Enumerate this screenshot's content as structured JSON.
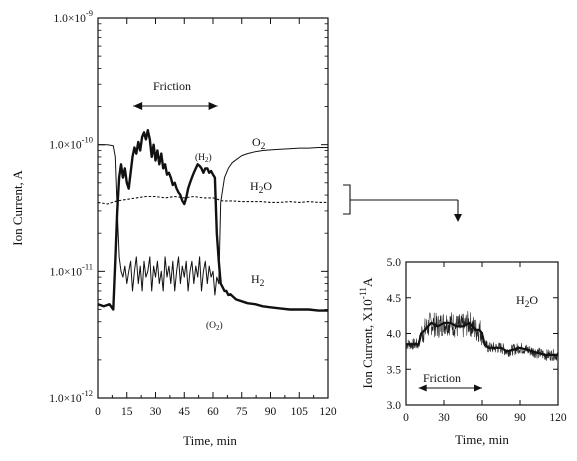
{
  "chart_data": [
    {
      "type": "line",
      "scale": "log",
      "xlabel": "Time, min",
      "ylabel": "Ion Current, A",
      "xlim": [
        0,
        120
      ],
      "ylim": [
        1e-12,
        1e-09
      ],
      "x_ticks": [
        "0",
        "15",
        "30",
        "45",
        "60",
        "75",
        "90",
        "105",
        "120"
      ],
      "y_ticks": [
        {
          "mant": "1.0",
          "exp": "-9",
          "value": 1e-09
        },
        {
          "mant": "1.0",
          "exp": "-10",
          "value": 1e-10
        },
        {
          "mant": "1.0",
          "exp": "-11",
          "value": 1e-11
        },
        {
          "mant": "1.0",
          "exp": "-12",
          "value": 1e-12
        }
      ],
      "annotations": {
        "friction": "Friction",
        "friction_range": [
          10,
          65
        ],
        "o2_label": "O",
        "o2_sub": "2",
        "h2o_label_a": "H",
        "h2o_label_sub": "2",
        "h2o_label_b": "O",
        "h2_label": "H",
        "h2_sub": "2",
        "h2_paren": "(H",
        "h2_paren_sub": "2",
        "h2_paren_close": ")",
        "o2_paren": "(O",
        "o2_paren_sub": "2",
        "o2_paren_close": ")"
      },
      "series": [
        {
          "name": "O2",
          "style": "thin",
          "x": [
            0,
            5,
            8,
            9,
            10,
            11,
            12,
            13,
            14,
            15,
            16,
            17,
            18,
            19,
            20,
            21,
            22,
            23,
            24,
            25,
            26,
            27,
            28,
            29,
            30,
            31,
            32,
            33,
            34,
            35,
            36,
            37,
            38,
            39,
            40,
            41,
            42,
            43,
            44,
            45,
            46,
            47,
            48,
            49,
            50,
            51,
            52,
            53,
            54,
            55,
            56,
            57,
            58,
            59,
            60,
            61,
            62,
            63,
            64,
            66,
            68,
            70,
            72,
            75,
            78,
            82,
            86,
            90,
            95,
            100,
            105,
            110,
            115,
            120
          ],
          "y": [
            1e-10,
            1e-10,
            9.8e-11,
            8e-11,
            3e-11,
            1.3e-11,
            1e-11,
            9e-12,
            1.1e-11,
            8e-12,
            1e-11,
            1.2e-11,
            7e-12,
            1e-11,
            1.3e-11,
            8e-12,
            1.1e-11,
            7e-12,
            1.2e-11,
            9e-12,
            1e-11,
            1.3e-11,
            7e-12,
            1.1e-11,
            9e-12,
            1.2e-11,
            8e-12,
            1e-11,
            7e-12,
            1.3e-11,
            9e-12,
            1.1e-11,
            8e-12,
            1.2e-11,
            7e-12,
            1e-11,
            1.3e-11,
            8e-12,
            1.1e-11,
            9e-12,
            1.2e-11,
            7e-12,
            1e-11,
            1.2e-11,
            8e-12,
            1.1e-11,
            9e-12,
            1.3e-11,
            7e-12,
            1e-11,
            1.2e-11,
            8e-12,
            1.1e-11,
            9e-12,
            1e-11,
            6.5e-12,
            9e-12,
            8e-12,
            3.5e-11,
            5.5e-11,
            6.5e-11,
            7.2e-11,
            7.6e-11,
            8.2e-11,
            8.5e-11,
            8.8e-11,
            9e-11,
            9.1e-11,
            9.2e-11,
            9.3e-11,
            9.4e-11,
            9.4e-11,
            9.5e-11,
            9.5e-11
          ]
        },
        {
          "name": "H2O",
          "style": "dotted",
          "x": [
            0,
            5,
            10,
            15,
            20,
            25,
            30,
            35,
            40,
            45,
            50,
            55,
            60,
            65,
            70,
            75,
            80,
            85,
            90,
            95,
            100,
            105,
            110,
            115,
            120
          ],
          "y": [
            3.5e-11,
            3.4e-11,
            3.6e-11,
            3.7e-11,
            3.8e-11,
            3.9e-11,
            3.9e-11,
            3.8e-11,
            3.9e-11,
            3.8e-11,
            3.9e-11,
            3.8e-11,
            3.8e-11,
            3.6e-11,
            3.6e-11,
            3.55e-11,
            3.55e-11,
            3.55e-11,
            3.5e-11,
            3.5e-11,
            3.55e-11,
            3.5e-11,
            3.55e-11,
            3.5e-11,
            3.5e-11
          ]
        },
        {
          "name": "H2",
          "style": "thick",
          "x": [
            0,
            3,
            6,
            8,
            9,
            10,
            11,
            12,
            13,
            14,
            15,
            16,
            17,
            18,
            19,
            20,
            21,
            22,
            23,
            24,
            25,
            26,
            27,
            28,
            29,
            30,
            31,
            32,
            33,
            34,
            35,
            36,
            37,
            38,
            39,
            40,
            41,
            42,
            43,
            44,
            45,
            46,
            47,
            48,
            49,
            50,
            51,
            52,
            53,
            54,
            55,
            56,
            57,
            58,
            59,
            60,
            61,
            62,
            63,
            64,
            65,
            66,
            67,
            68,
            69,
            70,
            72,
            75,
            78,
            82,
            86,
            90,
            95,
            100,
            105,
            110,
            115,
            120
          ],
          "y": [
            5.5e-12,
            5.3e-12,
            5.5e-12,
            5e-12,
            1.2e-11,
            3e-11,
            5.5e-11,
            7e-11,
            5.5e-11,
            6.5e-11,
            5e-11,
            4.5e-11,
            6e-11,
            8e-11,
            9.5e-11,
            8.5e-11,
            1.05e-10,
            9e-11,
            1.15e-10,
            1.25e-10,
            1.1e-10,
            1.3e-10,
            1.1e-10,
            8e-11,
            1e-10,
            7.5e-11,
            9e-11,
            7e-11,
            8.5e-11,
            6.5e-11,
            7e-11,
            5.8e-11,
            6e-11,
            5.5e-11,
            4.8e-11,
            5e-11,
            4.5e-11,
            4.2e-11,
            4e-11,
            3.6e-11,
            3.4e-11,
            3.8e-11,
            4.5e-11,
            5e-11,
            5.5e-11,
            6e-11,
            6.5e-11,
            7e-11,
            6.8e-11,
            6.5e-11,
            6e-11,
            6.5e-11,
            6.5e-11,
            6e-11,
            6.2e-11,
            5.8e-11,
            5.5e-11,
            2e-11,
            1.2e-11,
            8e-12,
            7.5e-12,
            7e-12,
            7e-12,
            6.5e-12,
            6.6e-12,
            6.4e-12,
            6e-12,
            5.8e-12,
            5.6e-12,
            5.5e-12,
            5.3e-12,
            5.2e-12,
            5.1e-12,
            5e-12,
            5e-12,
            5e-12,
            4.9e-12,
            4.9e-12
          ]
        }
      ]
    },
    {
      "type": "line",
      "xlabel": "Time, min",
      "ylabel_a": "Ion Current, X10",
      "ylabel_exp": "-11",
      "ylabel_b": "A",
      "xlim": [
        0,
        120
      ],
      "ylim": [
        3.0,
        5.0
      ],
      "x_ticks": [
        "0",
        "30",
        "60",
        "90",
        "120"
      ],
      "y_ticks": [
        "3.0",
        "3.5",
        "4.0",
        "4.5",
        "5.0"
      ],
      "annotations": {
        "h2o_label_a": "H",
        "h2o_label_sub": "2",
        "h2o_label_b": "O",
        "friction": "Friction",
        "friction_range": [
          10,
          60
        ]
      },
      "series": [
        {
          "name": "H2O",
          "x": [
            0,
            10,
            12,
            15,
            20,
            25,
            30,
            35,
            40,
            45,
            50,
            55,
            58,
            60,
            62,
            65,
            70,
            75,
            80,
            90,
            100,
            110,
            120
          ],
          "y": [
            3.85,
            3.85,
            4.0,
            4.05,
            4.15,
            4.1,
            4.15,
            4.15,
            4.1,
            4.1,
            4.15,
            4.05,
            4.05,
            4.0,
            3.85,
            3.8,
            3.8,
            3.8,
            3.75,
            3.8,
            3.75,
            3.7,
            3.7
          ],
          "noise": 0.08
        }
      ]
    }
  ]
}
